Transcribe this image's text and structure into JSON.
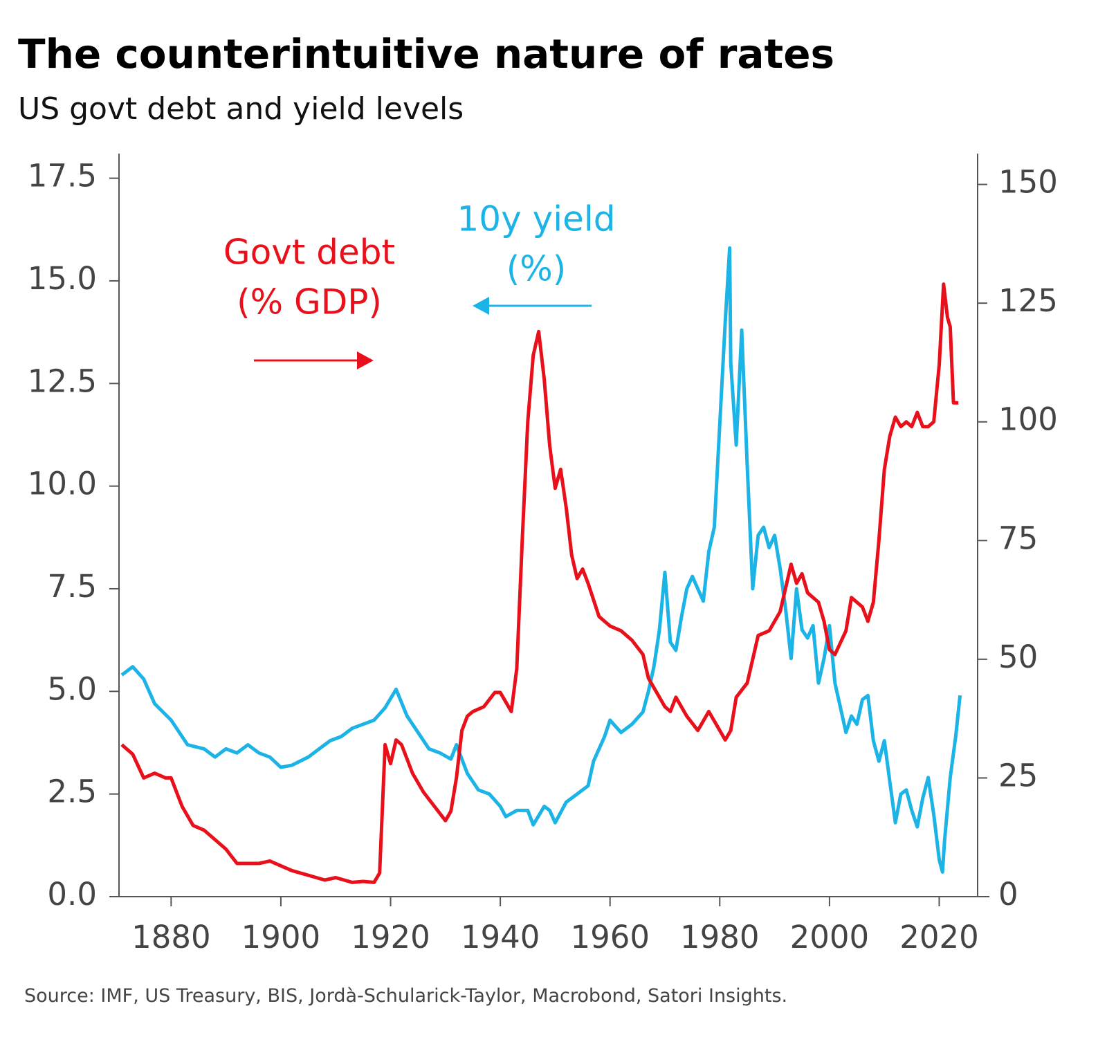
{
  "chart_data": {
    "type": "line",
    "title": "The counterintuitive nature of rates",
    "subtitle": "US govt debt and yield levels",
    "source": "Source: IMF, US Treasury, BIS, Jordà-Schularick-Taylor, Macrobond, Satori Insights.",
    "annotations": [
      {
        "lines": [
          "Govt debt",
          "(% GDP)"
        ],
        "color": "#e8101a"
      },
      {
        "lines": [
          "10y yield",
          "(%)"
        ],
        "color": "#1cb3e6"
      }
    ],
    "xlim": [
      1870.5,
      2027
    ],
    "xticks": [
      1880,
      1900,
      1920,
      1940,
      1960,
      1980,
      2000,
      2020
    ],
    "ylim": [
      0,
      18.1
    ],
    "yticks": [
      {
        "value": 0,
        "label": "0.0"
      },
      2.5,
      {
        "value": 5,
        "label": "5.0"
      },
      7.5,
      {
        "value": 10,
        "label": "10.0"
      },
      12.5,
      {
        "value": 15,
        "label": "15.0"
      },
      17.5
    ],
    "y2lim": [
      0,
      156.5
    ],
    "y2ticks": [
      0,
      25,
      50,
      75,
      100,
      125,
      150
    ],
    "series": [
      {
        "name": "10y yield",
        "color": "#1cb3e6",
        "axis": "y",
        "x": [
          1871,
          1873,
          1875,
          1877,
          1880,
          1883,
          1886,
          1888,
          1890,
          1892,
          1894,
          1896,
          1898,
          1900,
          1902,
          1905,
          1907,
          1909,
          1911,
          1913,
          1915,
          1917,
          1919,
          1921,
          1923,
          1925,
          1927,
          1929,
          1931,
          1932,
          1934,
          1936,
          1938,
          1940,
          1941,
          1943,
          1945,
          1946,
          1948,
          1949,
          1950,
          1952,
          1954,
          1956,
          1957,
          1959,
          1960,
          1962,
          1964,
          1966,
          1967,
          1968,
          1969,
          1970,
          1971,
          1972,
          1973,
          1974,
          1975,
          1976,
          1977,
          1978,
          1979,
          1980,
          1981,
          1981.8,
          1982,
          1983,
          1984,
          1985,
          1986,
          1987,
          1988,
          1989,
          1990,
          1991,
          1992,
          1993,
          1994,
          1995,
          1996,
          1997,
          1998,
          1999,
          2000,
          2001,
          2002,
          2003,
          2004,
          2005,
          2006,
          2007,
          2008,
          2009,
          2010,
          2011,
          2012,
          2013,
          2014,
          2015,
          2016,
          2017,
          2018,
          2019,
          2020,
          2020.6,
          2021,
          2022,
          2023,
          2023.8
        ],
        "values": [
          5.4,
          5.6,
          5.3,
          4.7,
          4.3,
          3.7,
          3.6,
          3.4,
          3.6,
          3.5,
          3.7,
          3.5,
          3.4,
          3.15,
          3.2,
          3.4,
          3.6,
          3.8,
          3.9,
          4.1,
          4.2,
          4.3,
          4.6,
          5.05,
          4.4,
          4.0,
          3.6,
          3.5,
          3.35,
          3.7,
          3.0,
          2.6,
          2.5,
          2.2,
          1.95,
          2.1,
          2.1,
          1.75,
          2.2,
          2.1,
          1.8,
          2.3,
          2.5,
          2.7,
          3.3,
          3.9,
          4.3,
          4.0,
          4.2,
          4.5,
          5.0,
          5.6,
          6.5,
          7.9,
          6.2,
          6.0,
          6.8,
          7.5,
          7.8,
          7.5,
          7.2,
          8.4,
          9.0,
          11.5,
          14.0,
          15.8,
          13.0,
          11.0,
          13.8,
          10.5,
          7.5,
          8.8,
          9.0,
          8.5,
          8.8,
          8.0,
          7.0,
          5.8,
          7.5,
          6.5,
          6.3,
          6.6,
          5.2,
          5.8,
          6.6,
          5.2,
          4.6,
          4.0,
          4.4,
          4.2,
          4.8,
          4.9,
          3.8,
          3.3,
          3.8,
          2.8,
          1.8,
          2.5,
          2.6,
          2.1,
          1.7,
          2.4,
          2.9,
          2.0,
          0.9,
          0.6,
          1.4,
          2.9,
          3.9,
          4.9
        ]
      },
      {
        "name": "Govt debt",
        "color": "#e8101a",
        "axis": "y2",
        "x": [
          1871,
          1873,
          1875,
          1877,
          1879,
          1880,
          1882,
          1884,
          1886,
          1888,
          1890,
          1892,
          1894,
          1896,
          1898,
          1900,
          1902,
          1905,
          1908,
          1910,
          1913,
          1915,
          1917,
          1918,
          1919,
          1920,
          1921,
          1922,
          1924,
          1926,
          1928,
          1930,
          1931,
          1932,
          1933,
          1934,
          1935,
          1937,
          1939,
          1940,
          1942,
          1943,
          1944,
          1945,
          1946,
          1947,
          1948,
          1949,
          1950,
          1951,
          1952,
          1953,
          1954,
          1955,
          1956,
          1958,
          1959,
          1960,
          1962,
          1964,
          1966,
          1967,
          1970,
          1971,
          1972,
          1974,
          1976,
          1978,
          1980,
          1981,
          1982,
          1983,
          1985,
          1986,
          1987,
          1989,
          1991,
          1992,
          1993,
          1994,
          1995,
          1996,
          1998,
          1999,
          2000,
          2001,
          2003,
          2004,
          2006,
          2007,
          2008,
          2009,
          2010,
          2011,
          2012,
          2013,
          2014,
          2015,
          2016,
          2017,
          2018,
          2019,
          2020,
          2020.8,
          2021.5,
          2022,
          2022.6,
          2023.5
        ],
        "values": [
          32,
          30,
          25,
          26,
          25,
          25,
          19,
          15,
          14,
          12,
          10,
          7,
          7,
          7,
          7.5,
          6.5,
          5.5,
          4.5,
          3.5,
          4,
          3,
          3.2,
          3,
          5,
          32,
          28,
          33,
          32,
          26,
          22,
          19,
          16,
          18,
          25,
          35,
          38,
          39,
          40,
          43,
          43,
          39,
          48,
          75,
          100,
          114,
          119,
          109,
          95,
          86,
          90,
          82,
          72,
          67,
          69,
          66,
          59,
          58,
          57,
          56,
          54,
          51,
          46,
          40,
          39,
          42,
          38,
          35,
          39,
          35,
          33,
          35,
          42,
          45,
          50,
          55,
          56,
          60,
          65,
          70,
          66,
          68,
          64,
          62,
          58,
          52,
          51,
          56,
          63,
          61,
          58,
          62,
          75,
          90,
          97,
          101,
          99,
          100,
          99,
          102,
          99,
          99,
          100,
          112,
          129,
          122,
          120,
          104,
          104
        ]
      }
    ]
  }
}
